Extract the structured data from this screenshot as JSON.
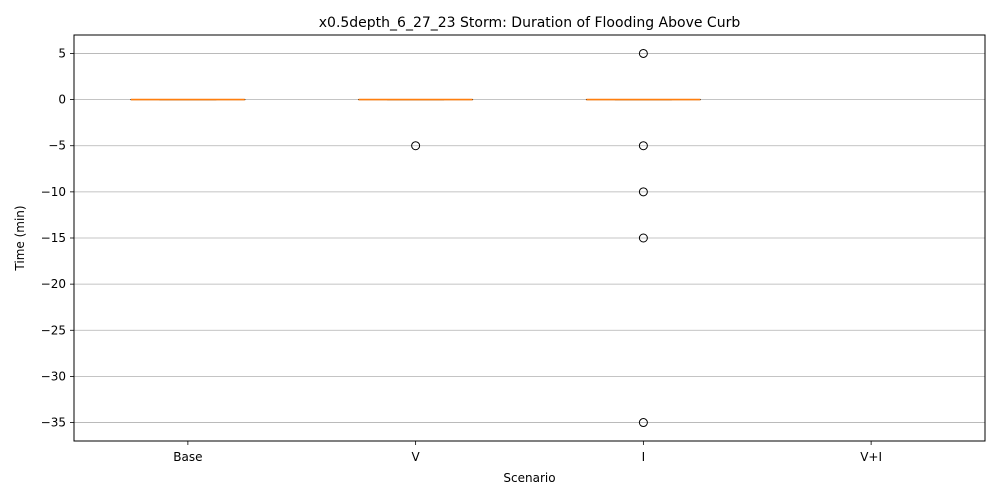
{
  "chart_data": {
    "type": "box",
    "title": "x0.5depth_6_27_23 Storm: Duration of Flooding Above Curb",
    "xlabel": "Scenario",
    "ylabel": "Time (min)",
    "categories": [
      "Base",
      "V",
      "I",
      "V+I"
    ],
    "ylim": [
      -37,
      7
    ],
    "yticks": [
      5,
      0,
      -5,
      -10,
      -15,
      -20,
      -25,
      -30,
      -35
    ],
    "ytick_labels": [
      "5",
      "0",
      "−5",
      "−10",
      "−15",
      "−20",
      "−25",
      "−30",
      "−35"
    ],
    "grid": "y",
    "boxes": [
      {
        "category": "Base",
        "q1": 0,
        "median": 0,
        "q3": 0,
        "whisker_low": 0,
        "whisker_high": 0,
        "outliers": []
      },
      {
        "category": "V",
        "q1": 0,
        "median": 0,
        "q3": 0,
        "whisker_low": 0,
        "whisker_high": 0,
        "outliers": [
          -5
        ]
      },
      {
        "category": "I",
        "q1": 0,
        "median": 0,
        "q3": 0,
        "whisker_low": 0,
        "whisker_high": 0,
        "outliers": [
          5,
          -5,
          -10,
          -15,
          -35
        ]
      },
      {
        "category": "V+I",
        "q1": null,
        "median": null,
        "q3": null,
        "whisker_low": null,
        "whisker_high": null,
        "outliers": []
      }
    ],
    "colors": {
      "median": "#ff7f0e",
      "box": "#000000",
      "grid": "#b0b0b0",
      "outlier": "#000000"
    }
  }
}
